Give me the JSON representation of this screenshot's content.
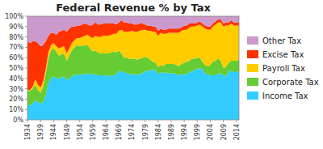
{
  "chart_data": {
    "type": "area",
    "stacked": true,
    "title": "Federal Revenue % by Tax",
    "legend": "right",
    "grid": false,
    "x": [
      1934,
      1935,
      1936,
      1937,
      1938,
      1939,
      1940,
      1941,
      1942,
      1943,
      1944,
      1945,
      1946,
      1947,
      1948,
      1949,
      1950,
      1951,
      1952,
      1953,
      1954,
      1955,
      1956,
      1957,
      1958,
      1959,
      1960,
      1961,
      1962,
      1963,
      1964,
      1965,
      1966,
      1967,
      1968,
      1969,
      1970,
      1971,
      1972,
      1973,
      1974,
      1975,
      1976,
      1977,
      1978,
      1979,
      1980,
      1981,
      1982,
      1983,
      1984,
      1985,
      1986,
      1987,
      1988,
      1989,
      1990,
      1991,
      1992,
      1993,
      1994,
      1995,
      1996,
      1997,
      1998,
      1999,
      2000,
      2001,
      2002,
      2003,
      2004,
      2005,
      2006,
      2007,
      2008,
      2009,
      2010,
      2011,
      2012,
      2013,
      2014,
      2015
    ],
    "series": [
      {
        "name": "Income Tax",
        "color": "#33CCFF",
        "values": [
          14,
          14,
          16,
          19,
          17,
          16,
          17,
          24,
          35,
          40,
          42,
          40,
          40,
          41,
          42,
          38,
          40,
          42,
          43,
          44,
          43,
          44,
          44,
          45,
          44,
          44,
          44,
          43,
          43,
          43,
          43,
          42,
          43,
          43,
          44,
          47,
          47,
          46,
          45,
          44,
          44,
          44,
          44,
          44,
          45,
          47,
          47,
          48,
          48,
          48,
          44,
          46,
          45,
          46,
          45,
          45,
          45,
          44,
          43,
          44,
          44,
          44,
          46,
          47,
          48,
          49,
          50,
          49,
          45,
          44,
          43,
          43,
          43,
          45,
          45,
          43,
          42,
          47,
          47,
          46,
          46,
          47
        ]
      },
      {
        "name": "Corporate Tax",
        "color": "#66CC33",
        "values": [
          14,
          14,
          14,
          15,
          12,
          10,
          15,
          20,
          25,
          27,
          27,
          26,
          22,
          22,
          22,
          19,
          22,
          25,
          27,
          28,
          28,
          27,
          28,
          27,
          25,
          22,
          23,
          22,
          21,
          21,
          21,
          22,
          22,
          23,
          21,
          20,
          17,
          14,
          15,
          15,
          15,
          15,
          14,
          15,
          15,
          14,
          13,
          10,
          8,
          7,
          7,
          7,
          7,
          8,
          9,
          9,
          9,
          9,
          9,
          10,
          11,
          12,
          11,
          12,
          11,
          11,
          10,
          7,
          8,
          8,
          10,
          13,
          14,
          14,
          12,
          7,
          9,
          8,
          10,
          11,
          11,
          11
        ]
      },
      {
        "name": "Payroll Tax",
        "color": "#FFCC00",
        "values": [
          1,
          1,
          2,
          5,
          5,
          5,
          5,
          5,
          5,
          5,
          5,
          5,
          7,
          7,
          7,
          7,
          7,
          7,
          7,
          7,
          8,
          9,
          9,
          10,
          11,
          13,
          14,
          15,
          16,
          17,
          17,
          17,
          17,
          17,
          18,
          19,
          23,
          25,
          25,
          26,
          27,
          26,
          27,
          27,
          27,
          26,
          26,
          28,
          29,
          30,
          30,
          31,
          31,
          29,
          30,
          30,
          30,
          31,
          32,
          32,
          32,
          31,
          32,
          31,
          31,
          31,
          32,
          34,
          35,
          35,
          34,
          34,
          35,
          35,
          37,
          40,
          40,
          36,
          36,
          34,
          34,
          33
        ]
      },
      {
        "name": "Excise Tax",
        "color": "#FF3300",
        "values": [
          47,
          45,
          44,
          37,
          40,
          40,
          35,
          27,
          16,
          12,
          10,
          11,
          16,
          16,
          16,
          21,
          19,
          16,
          13,
          12,
          12,
          12,
          12,
          10,
          11,
          13,
          13,
          12,
          12,
          12,
          12,
          12,
          11,
          10,
          9,
          8,
          9,
          9,
          9,
          8,
          7,
          7,
          7,
          7,
          6,
          5,
          5,
          5,
          5,
          5,
          5,
          4,
          4,
          4,
          4,
          4,
          4,
          4,
          4,
          3,
          4,
          4,
          4,
          3,
          3,
          3,
          3,
          3,
          3,
          3,
          3,
          3,
          3,
          3,
          3,
          3,
          3,
          3,
          3,
          3,
          3,
          3
        ]
      },
      {
        "name": "Other Tax",
        "color": "#CC99CC",
        "values": [
          24,
          26,
          24,
          24,
          26,
          29,
          28,
          24,
          19,
          16,
          16,
          18,
          15,
          14,
          13,
          15,
          12,
          10,
          10,
          9,
          9,
          8,
          7,
          8,
          9,
          8,
          6,
          8,
          8,
          7,
          7,
          7,
          7,
          7,
          8,
          6,
          4,
          6,
          6,
          7,
          7,
          8,
          8,
          7,
          7,
          8,
          9,
          9,
          10,
          10,
          14,
          12,
          13,
          13,
          12,
          12,
          12,
          12,
          12,
          11,
          9,
          9,
          7,
          7,
          7,
          6,
          5,
          7,
          9,
          10,
          10,
          7,
          5,
          3,
          3,
          7,
          6,
          6,
          4,
          6,
          6,
          6
        ]
      }
    ],
    "xlim": [
      1934,
      2015
    ],
    "xticks": [
      1934,
      1939,
      1944,
      1949,
      1954,
      1959,
      1964,
      1969,
      1974,
      1979,
      1984,
      1989,
      1994,
      1999,
      2004,
      2009,
      2014
    ],
    "ylim": [
      0,
      100
    ],
    "yticks": [
      {
        "value": 0,
        "label": "0%"
      },
      {
        "value": 10,
        "label": "10%"
      },
      {
        "value": 20,
        "label": "20%"
      },
      {
        "value": 30,
        "label": "30%"
      },
      {
        "value": 40,
        "label": "40%"
      },
      {
        "value": 50,
        "label": "50%"
      },
      {
        "value": 60,
        "label": "60%"
      },
      {
        "value": 70,
        "label": "70%"
      },
      {
        "value": 80,
        "label": "80%"
      },
      {
        "value": 90,
        "label": "90%"
      },
      {
        "value": 100,
        "label": "100%"
      }
    ]
  }
}
